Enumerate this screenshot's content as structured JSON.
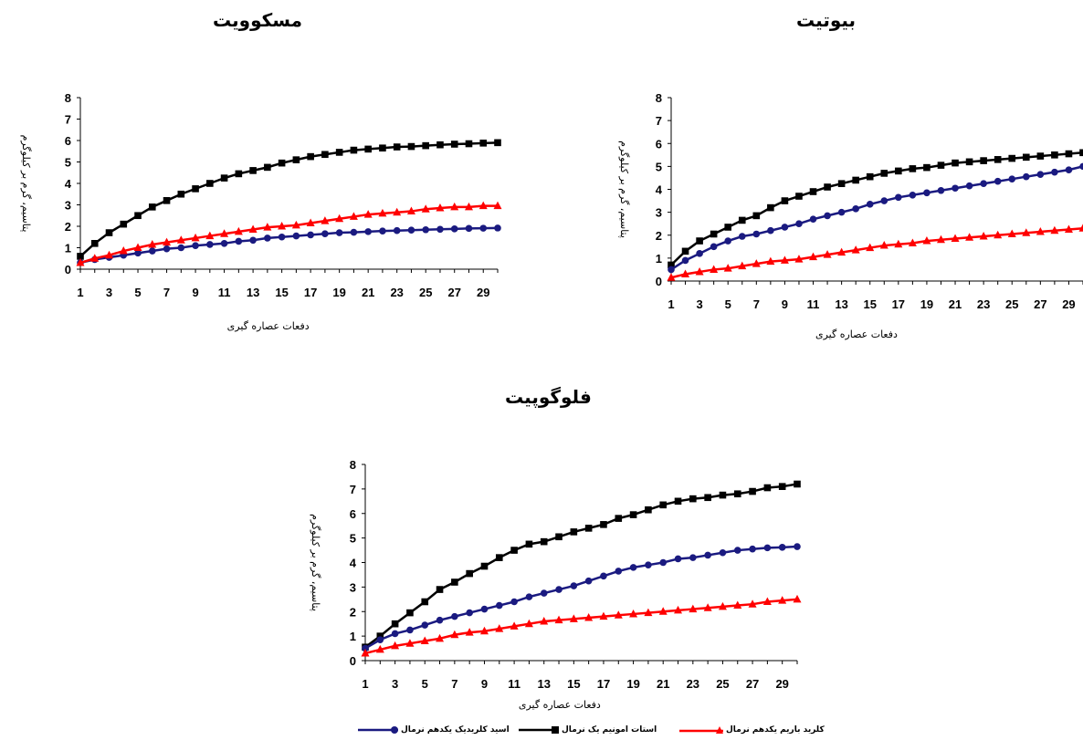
{
  "colors": {
    "ammonium": "#000000",
    "hcl": "#1a1a80",
    "bacl2": "#ff0000"
  },
  "legend": [
    {
      "key": "hcl",
      "label": "اسید کلریدیک یکدهم نرمال",
      "marker": "circle",
      "color": "#1a1a80"
    },
    {
      "key": "ammonium",
      "label": "استات امونیم یک نرمال",
      "marker": "square",
      "color": "#000000"
    },
    {
      "key": "bacl2",
      "label": "کلرید باریم یکدهم نرمال",
      "marker": "triangle",
      "color": "#ff0000"
    }
  ],
  "chart_data": [
    {
      "id": "biotite",
      "type": "line",
      "title": "بیوتیت",
      "xlabel": "دفعات عصاره گیری",
      "ylabel": "پتاسیم، گرم بر کیلوگرم",
      "x": [
        1,
        2,
        3,
        4,
        5,
        6,
        7,
        8,
        9,
        10,
        11,
        12,
        13,
        14,
        15,
        16,
        17,
        18,
        19,
        20,
        21,
        22,
        23,
        24,
        25,
        26,
        27,
        28,
        29,
        30
      ],
      "xticks": [
        1,
        3,
        5,
        7,
        9,
        11,
        13,
        15,
        17,
        19,
        21,
        23,
        25,
        27,
        29
      ],
      "ylim": [
        0,
        8
      ],
      "yticks": [
        0,
        1,
        2,
        3,
        4,
        5,
        6,
        7,
        8
      ],
      "series": [
        {
          "key": "ammonium",
          "marker": "square",
          "values": [
            0.7,
            1.3,
            1.75,
            2.05,
            2.35,
            2.65,
            2.85,
            3.2,
            3.5,
            3.7,
            3.9,
            4.1,
            4.25,
            4.4,
            4.55,
            4.7,
            4.8,
            4.9,
            4.95,
            5.05,
            5.15,
            5.2,
            5.25,
            5.3,
            5.35,
            5.4,
            5.45,
            5.5,
            5.55,
            5.6
          ]
        },
        {
          "key": "hcl",
          "marker": "circle",
          "values": [
            0.5,
            0.9,
            1.2,
            1.5,
            1.75,
            1.95,
            2.05,
            2.2,
            2.35,
            2.5,
            2.7,
            2.85,
            3.0,
            3.15,
            3.35,
            3.5,
            3.65,
            3.75,
            3.85,
            3.95,
            4.05,
            4.15,
            4.25,
            4.35,
            4.45,
            4.55,
            4.65,
            4.75,
            4.85,
            5.0
          ]
        },
        {
          "key": "bacl2",
          "marker": "triangle",
          "values": [
            0.15,
            0.3,
            0.4,
            0.5,
            0.55,
            0.65,
            0.75,
            0.85,
            0.9,
            0.95,
            1.05,
            1.15,
            1.25,
            1.35,
            1.45,
            1.55,
            1.6,
            1.65,
            1.75,
            1.8,
            1.85,
            1.9,
            1.95,
            2.0,
            2.05,
            2.1,
            2.15,
            2.2,
            2.25,
            2.3
          ]
        }
      ]
    },
    {
      "id": "muscovite",
      "type": "line",
      "title": "مسکوویت",
      "xlabel": "دفعات عصاره گیری",
      "ylabel": "پتاسیم، گرم بر کیلوگرم",
      "x": [
        1,
        2,
        3,
        4,
        5,
        6,
        7,
        8,
        9,
        10,
        11,
        12,
        13,
        14,
        15,
        16,
        17,
        18,
        19,
        20,
        21,
        22,
        23,
        24,
        25,
        26,
        27,
        28,
        29,
        30
      ],
      "xticks": [
        1,
        3,
        5,
        7,
        9,
        11,
        13,
        15,
        17,
        19,
        21,
        23,
        25,
        27,
        29
      ],
      "ylim": [
        0,
        8
      ],
      "yticks": [
        0,
        1,
        2,
        3,
        4,
        5,
        6,
        7,
        8
      ],
      "series": [
        {
          "key": "ammonium",
          "marker": "square",
          "values": [
            0.6,
            1.2,
            1.7,
            2.1,
            2.5,
            2.9,
            3.2,
            3.5,
            3.75,
            4.0,
            4.25,
            4.45,
            4.6,
            4.75,
            4.95,
            5.1,
            5.25,
            5.35,
            5.45,
            5.55,
            5.6,
            5.65,
            5.7,
            5.72,
            5.76,
            5.8,
            5.83,
            5.85,
            5.88,
            5.9
          ]
        },
        {
          "key": "hcl",
          "marker": "circle",
          "values": [
            0.3,
            0.45,
            0.55,
            0.65,
            0.75,
            0.85,
            0.95,
            1.0,
            1.1,
            1.15,
            1.2,
            1.3,
            1.35,
            1.45,
            1.5,
            1.55,
            1.6,
            1.65,
            1.7,
            1.72,
            1.75,
            1.78,
            1.8,
            1.82,
            1.84,
            1.86,
            1.88,
            1.9,
            1.91,
            1.92
          ]
        },
        {
          "key": "bacl2",
          "marker": "triangle",
          "values": [
            0.3,
            0.5,
            0.65,
            0.85,
            1.0,
            1.15,
            1.25,
            1.35,
            1.45,
            1.55,
            1.65,
            1.75,
            1.85,
            1.95,
            2.0,
            2.05,
            2.15,
            2.25,
            2.35,
            2.45,
            2.55,
            2.6,
            2.65,
            2.7,
            2.8,
            2.85,
            2.9,
            2.9,
            2.95,
            2.95
          ]
        }
      ]
    },
    {
      "id": "phlogopite",
      "type": "line",
      "title": "فلوگوپیت",
      "xlabel": "دفعات عصاره گیری",
      "ylabel": "پتاسیم، گرم بر کیلوگرم",
      "x": [
        1,
        2,
        3,
        4,
        5,
        6,
        7,
        8,
        9,
        10,
        11,
        12,
        13,
        14,
        15,
        16,
        17,
        18,
        19,
        20,
        21,
        22,
        23,
        24,
        25,
        26,
        27,
        28,
        29,
        30
      ],
      "xticks": [
        1,
        3,
        5,
        7,
        9,
        11,
        13,
        15,
        17,
        19,
        21,
        23,
        25,
        27,
        29
      ],
      "ylim": [
        0,
        8
      ],
      "yticks": [
        0,
        1,
        2,
        3,
        4,
        5,
        6,
        7,
        8
      ],
      "series": [
        {
          "key": "ammonium",
          "marker": "square",
          "values": [
            0.55,
            1.0,
            1.5,
            1.95,
            2.4,
            2.9,
            3.2,
            3.55,
            3.85,
            4.2,
            4.5,
            4.75,
            4.85,
            5.05,
            5.25,
            5.4,
            5.55,
            5.8,
            5.95,
            6.15,
            6.35,
            6.5,
            6.6,
            6.65,
            6.75,
            6.8,
            6.9,
            7.05,
            7.1,
            7.2
          ]
        },
        {
          "key": "hcl",
          "marker": "circle",
          "values": [
            0.5,
            0.85,
            1.1,
            1.25,
            1.45,
            1.65,
            1.8,
            1.95,
            2.1,
            2.25,
            2.4,
            2.6,
            2.75,
            2.9,
            3.05,
            3.25,
            3.45,
            3.65,
            3.8,
            3.9,
            4.0,
            4.15,
            4.2,
            4.3,
            4.4,
            4.5,
            4.55,
            4.6,
            4.62,
            4.65
          ]
        },
        {
          "key": "bacl2",
          "marker": "triangle",
          "values": [
            0.3,
            0.45,
            0.6,
            0.7,
            0.8,
            0.9,
            1.05,
            1.15,
            1.2,
            1.3,
            1.4,
            1.5,
            1.6,
            1.65,
            1.7,
            1.75,
            1.8,
            1.85,
            1.9,
            1.95,
            2.0,
            2.05,
            2.1,
            2.15,
            2.2,
            2.25,
            2.3,
            2.4,
            2.45,
            2.5
          ]
        }
      ]
    }
  ]
}
